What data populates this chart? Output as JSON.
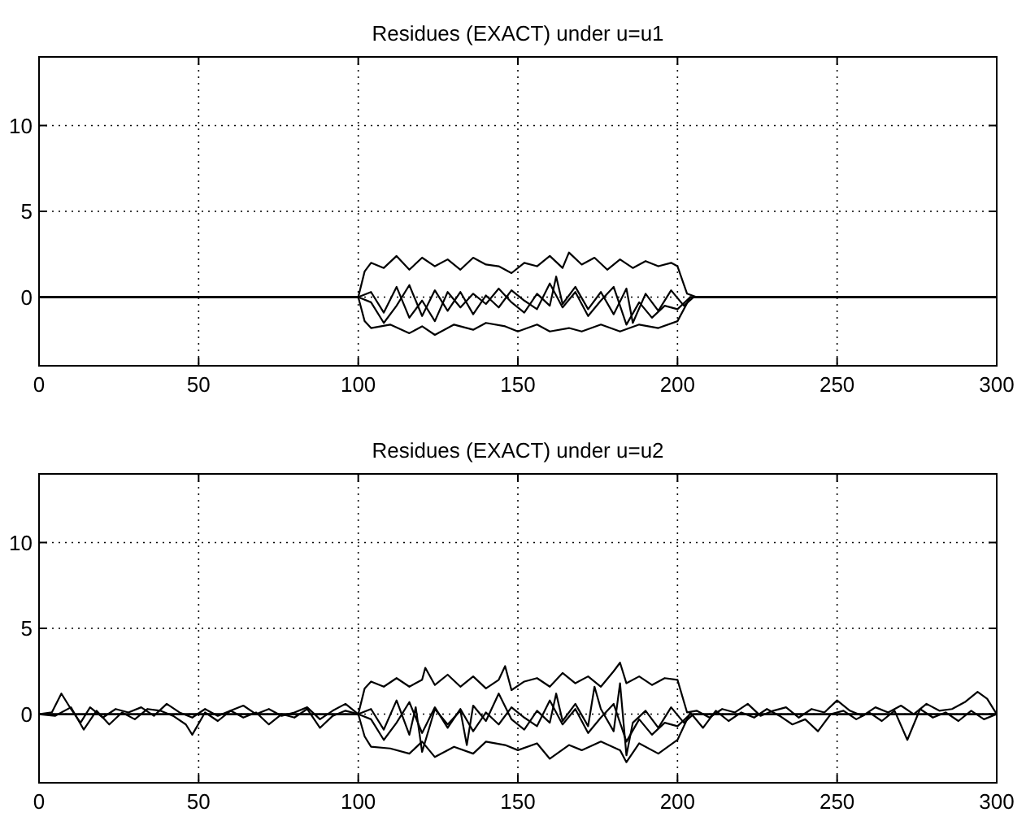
{
  "chart_data": [
    {
      "type": "line",
      "title": "Residues (EXACT) under u=u1",
      "xlim": [
        0,
        300
      ],
      "ylim": [
        -4,
        14
      ],
      "xticks": [
        0,
        50,
        100,
        150,
        200,
        250,
        300
      ],
      "yticks": [
        0,
        5,
        10
      ],
      "grid": true,
      "series": [
        {
          "color": "#000000",
          "x": [
            0,
            50,
            100,
            102,
            104,
            108,
            112,
            116,
            120,
            124,
            128,
            132,
            136,
            140,
            144,
            148,
            152,
            156,
            160,
            164,
            166,
            170,
            174,
            178,
            182,
            186,
            190,
            194,
            198,
            200,
            203,
            206,
            250,
            300
          ],
          "values": [
            0,
            0,
            0,
            1.5,
            2,
            1.7,
            2.4,
            1.6,
            2.3,
            1.8,
            2.2,
            1.6,
            2.3,
            1.9,
            1.8,
            1.4,
            2,
            1.8,
            2.4,
            1.7,
            2.6,
            1.9,
            2.3,
            1.6,
            2.2,
            1.7,
            2.1,
            1.8,
            2,
            1.8,
            0.2,
            0,
            0,
            0
          ]
        },
        {
          "color": "#000000",
          "x": [
            0,
            50,
            100,
            102,
            104,
            110,
            116,
            120,
            124,
            130,
            136,
            140,
            146,
            150,
            156,
            160,
            166,
            170,
            176,
            182,
            188,
            194,
            200,
            204,
            250,
            300
          ],
          "values": [
            0,
            0,
            0,
            -1.4,
            -1.8,
            -1.6,
            -2.1,
            -1.7,
            -2.2,
            -1.6,
            -1.9,
            -1.5,
            -1.7,
            -2,
            -1.6,
            -2,
            -1.8,
            -2,
            -1.6,
            -2,
            -1.6,
            -1.8,
            -1.4,
            0,
            0,
            0
          ]
        },
        {
          "color": "#000000",
          "x": [
            0,
            100,
            104,
            108,
            112,
            116,
            120,
            124,
            128,
            132,
            136,
            140,
            144,
            148,
            152,
            156,
            160,
            162,
            164,
            168,
            172,
            176,
            180,
            184,
            186,
            190,
            194,
            198,
            202,
            205,
            300
          ],
          "values": [
            0,
            0,
            0.3,
            -0.9,
            0.6,
            -1.2,
            -0.2,
            -1.4,
            0.3,
            -0.6,
            0.2,
            -0.4,
            0.5,
            -0.3,
            -0.9,
            0.2,
            -0.5,
            1.2,
            -0.4,
            0.6,
            -0.7,
            0.3,
            -1,
            0.5,
            -1.5,
            0.2,
            -0.8,
            0.4,
            -0.5,
            0,
            0
          ]
        },
        {
          "color": "#000000",
          "x": [
            0,
            100,
            104,
            108,
            112,
            116,
            120,
            124,
            128,
            132,
            136,
            140,
            144,
            148,
            152,
            156,
            160,
            164,
            168,
            172,
            176,
            180,
            184,
            188,
            192,
            196,
            200,
            204,
            300
          ],
          "values": [
            0,
            0,
            -0.3,
            -1.5,
            -0.5,
            0.7,
            -1.1,
            0.4,
            -0.8,
            0.3,
            -1,
            0.1,
            -0.6,
            0.4,
            -0.2,
            -0.7,
            0.8,
            -0.6,
            0.3,
            -1.1,
            -0.2,
            0.6,
            -1.6,
            -0.3,
            -1.2,
            -0.5,
            -0.7,
            0,
            0
          ]
        }
      ]
    },
    {
      "type": "line",
      "title": "Residues (EXACT) under u=u2",
      "xlim": [
        0,
        300
      ],
      "ylim": [
        -4,
        14
      ],
      "xticks": [
        0,
        50,
        100,
        150,
        200,
        250,
        300
      ],
      "yticks": [
        0,
        5,
        10
      ],
      "grid": true,
      "series": [
        {
          "color": "#000000",
          "x": [
            0,
            4,
            7,
            10,
            13,
            16,
            20,
            24,
            28,
            32,
            36,
            40,
            44,
            48,
            52,
            56,
            60,
            64,
            68,
            72,
            76,
            80,
            84,
            88,
            92,
            96,
            100,
            102,
            104,
            108,
            112,
            116,
            120,
            121,
            124,
            128,
            132,
            136,
            140,
            144,
            146,
            148,
            152,
            156,
            160,
            164,
            168,
            172,
            176,
            180,
            182,
            184,
            188,
            192,
            196,
            200,
            203,
            206,
            210,
            214,
            218,
            222,
            226,
            230,
            234,
            238,
            242,
            246,
            250,
            254,
            258,
            262,
            266,
            270,
            274,
            278,
            282,
            286,
            290,
            294,
            297,
            300
          ],
          "values": [
            0,
            0.1,
            1.2,
            0.3,
            -0.5,
            0.4,
            -0.2,
            0.3,
            0.1,
            0.4,
            -0.1,
            0.6,
            0.1,
            -0.2,
            0.3,
            -0.1,
            0.2,
            0.5,
            0,
            0.3,
            -0.1,
            0.1,
            0.4,
            -0.3,
            0.2,
            0.6,
            0,
            1.5,
            1.9,
            1.6,
            2.1,
            1.6,
            2,
            2.7,
            1.7,
            2.3,
            1.6,
            2.2,
            1.5,
            2,
            2.8,
            1.4,
            1.9,
            2.1,
            1.6,
            2.4,
            1.8,
            2.2,
            1.6,
            2.5,
            3,
            1.8,
            2.2,
            1.7,
            2.1,
            2,
            0.1,
            0.2,
            -0.2,
            0.3,
            0.1,
            0.6,
            -0.1,
            0.2,
            0.4,
            -0.2,
            0.3,
            0.1,
            0.8,
            0.2,
            -0.1,
            0.4,
            0.1,
            0.5,
            0,
            0.6,
            0.2,
            0.3,
            0.7,
            1.3,
            0.9,
            0
          ]
        },
        {
          "color": "#000000",
          "x": [
            0,
            5,
            10,
            14,
            18,
            22,
            26,
            30,
            34,
            38,
            42,
            46,
            48,
            52,
            56,
            60,
            64,
            68,
            72,
            76,
            80,
            84,
            88,
            92,
            96,
            100,
            102,
            104,
            110,
            116,
            120,
            124,
            130,
            136,
            140,
            146,
            150,
            156,
            160,
            166,
            170,
            176,
            182,
            184,
            188,
            194,
            200,
            204,
            208,
            212,
            216,
            220,
            224,
            228,
            232,
            236,
            240,
            244,
            248,
            252,
            256,
            260,
            264,
            268,
            272,
            276,
            280,
            284,
            288,
            292,
            296,
            300
          ],
          "values": [
            0,
            -0.1,
            0.4,
            -0.9,
            0.2,
            -0.6,
            0.1,
            -0.3,
            0.3,
            0.2,
            -0.1,
            -0.6,
            -1.2,
            0.1,
            -0.4,
            0.2,
            -0.2,
            0.1,
            -0.6,
            0,
            -0.2,
            0.3,
            -0.8,
            -0.1,
            0.2,
            0,
            -1.3,
            -1.9,
            -2,
            -2.3,
            -1.6,
            -2.5,
            -1.9,
            -2.3,
            -1.6,
            -1.8,
            -2.1,
            -1.7,
            -2.6,
            -1.8,
            -2.1,
            -1.6,
            -2.1,
            -2.8,
            -1.7,
            -2.3,
            -1.5,
            0.1,
            -0.8,
            0.2,
            -0.4,
            0.1,
            -0.2,
            0.3,
            -0.1,
            -0.6,
            -0.3,
            -1,
            0,
            0.2,
            -0.3,
            0.1,
            -0.4,
            0.2,
            -1.5,
            0.3,
            -0.2,
            0.1,
            -0.4,
            0.2,
            -0.3,
            0
          ]
        },
        {
          "color": "#000000",
          "x": [
            0,
            100,
            104,
            108,
            112,
            116,
            118,
            120,
            124,
            128,
            132,
            134,
            136,
            140,
            144,
            148,
            152,
            156,
            160,
            162,
            164,
            168,
            172,
            174,
            176,
            180,
            182,
            184,
            186,
            190,
            194,
            198,
            202,
            205,
            300
          ],
          "values": [
            0,
            0,
            0.3,
            -0.9,
            0.8,
            -1.2,
            0.4,
            -2.2,
            0.3,
            -0.6,
            0.2,
            -1.8,
            0.5,
            -0.4,
            1.2,
            -0.3,
            -0.9,
            0.2,
            -0.5,
            1.2,
            -0.4,
            0.6,
            -0.7,
            1.6,
            0.3,
            -1,
            1.8,
            -2.4,
            -0.5,
            0.2,
            -0.8,
            0.4,
            -0.5,
            0,
            0
          ]
        },
        {
          "color": "#000000",
          "x": [
            0,
            100,
            104,
            108,
            112,
            116,
            120,
            124,
            128,
            132,
            136,
            140,
            144,
            148,
            152,
            156,
            160,
            164,
            168,
            172,
            176,
            180,
            184,
            188,
            192,
            196,
            200,
            204,
            300
          ],
          "values": [
            0,
            0,
            -0.3,
            -1.5,
            -0.5,
            0.7,
            -1.1,
            0.4,
            -0.8,
            0.3,
            -1,
            0.1,
            -0.6,
            0.4,
            -0.2,
            -0.7,
            0.8,
            -0.6,
            0.3,
            -1.1,
            -0.2,
            0.6,
            -1.6,
            -0.3,
            -1.2,
            -0.5,
            -0.7,
            0,
            0
          ]
        }
      ]
    }
  ]
}
